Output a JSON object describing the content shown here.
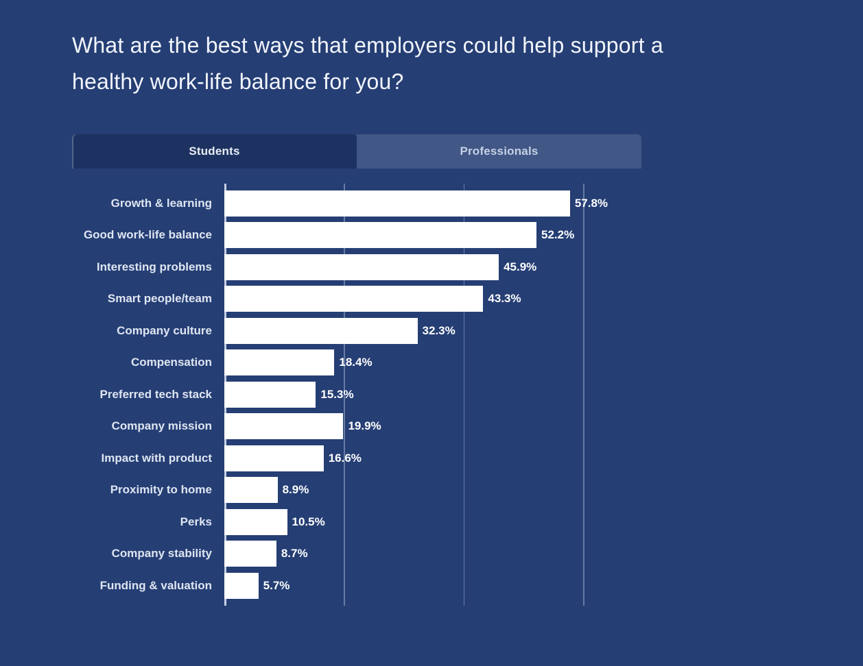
{
  "title": "What are the best ways that employers could help support a healthy work-life balance for you?",
  "tabs": [
    {
      "label": "Students",
      "active": true
    },
    {
      "label": "Professionals",
      "active": false
    }
  ],
  "chart_data": {
    "type": "bar",
    "orientation": "horizontal",
    "title": "What are the best ways that employers could help support a healthy work-life balance for you?",
    "active_series": "Students",
    "categories": [
      "Growth & learning",
      "Good work-life balance",
      "Interesting problems",
      "Smart people/team",
      "Company culture",
      "Compensation",
      "Preferred tech stack",
      "Company mission",
      "Impact with product",
      "Proximity to home",
      "Perks",
      "Company stability",
      "Funding & valuation"
    ],
    "values": [
      57.8,
      52.2,
      45.9,
      43.3,
      32.3,
      18.4,
      15.3,
      19.9,
      16.6,
      8.9,
      10.5,
      8.7,
      5.7
    ],
    "value_labels": [
      "57.8%",
      "52.2%",
      "45.9%",
      "43.3%",
      "32.3%",
      "18.4%",
      "15.3%",
      "19.9%",
      "16.6%",
      "8.9%",
      "10.5%",
      "8.7%",
      "5.7%"
    ],
    "xlim": [
      0,
      60
    ],
    "gridlines": [
      0,
      20,
      40,
      60
    ],
    "grid": true,
    "legend_position": "none",
    "bar_color": "#ffffff",
    "background_color": "#253e74"
  },
  "colors": {
    "background": "#253e74",
    "bar": "#ffffff",
    "title_text": "#f2f5fb",
    "label_text": "#dfe6f2",
    "tab_active_bg": "#1d3260",
    "tab_inactive_bg": "rgba(255,255,255,0.13)",
    "gridline": "rgba(214,224,242,0.38)"
  }
}
